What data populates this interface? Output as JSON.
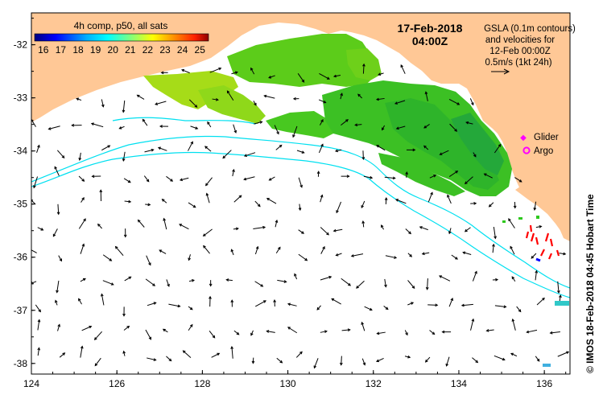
{
  "map": {
    "date_label": "17-Feb-2018",
    "time_label": "04:00Z",
    "colorbar": {
      "title": "4h comp, p50, all sats",
      "ticks": [
        "16",
        "17",
        "18",
        "19",
        "20",
        "21",
        "22",
        "23",
        "24",
        "25"
      ],
      "range": [
        15.5,
        25.5
      ],
      "colors": [
        "#00007f",
        "#0000ff",
        "#007fff",
        "#00ffff",
        "#7fff7f",
        "#ffff00",
        "#ff7f00",
        "#ff0000",
        "#7f0000"
      ]
    },
    "gsla_note": {
      "lines": [
        "GSLA (0.1m contours)",
        "and velocities for",
        "12-Feb 00:00Z",
        "0.5m/s (1kt 24h)"
      ]
    },
    "legend": {
      "glider_label": "Glider",
      "argo_label": "Argo",
      "glider_color": "#ff00ff",
      "argo_color": "#ff00ff"
    },
    "axes": {
      "x_ticks": [
        "124",
        "126",
        "128",
        "130",
        "132",
        "134",
        "136"
      ],
      "y_ticks": [
        "-32",
        "-33",
        "-34",
        "-35",
        "-36",
        "-37",
        "-38"
      ],
      "lon_range": [
        124,
        136.6
      ],
      "lat_range": [
        -38.2,
        -31.4
      ]
    },
    "credit": "© IMOS 18-Feb-2018 04:45 Hobart Time",
    "colors": {
      "land": "#ffc896",
      "ocean": "#ffffff",
      "contour": "#00e0f0",
      "sst_green": "#2ec81e",
      "sst_lime": "#9bdc10"
    }
  }
}
